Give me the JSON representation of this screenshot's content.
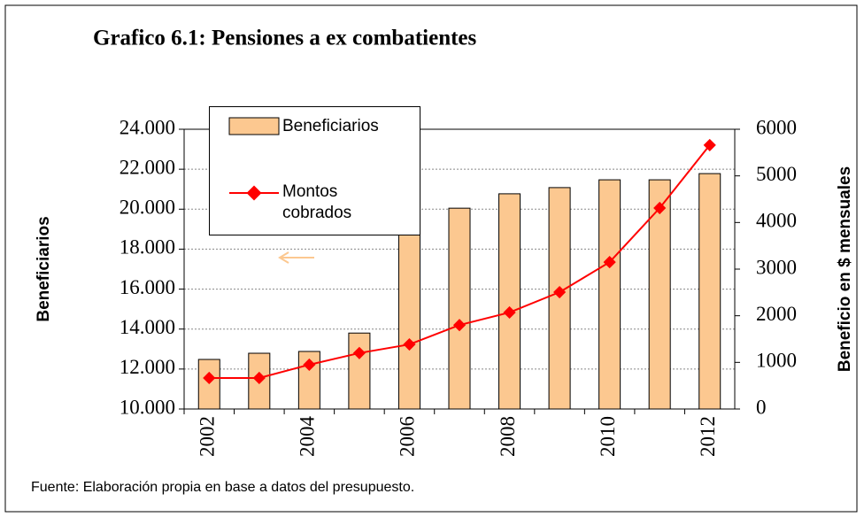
{
  "chart_data": {
    "type": "bar",
    "title": "Grafico 6.1: Pensiones a ex combatientes",
    "y_label": "Beneficiarios",
    "y2_label": "Beneficio en $ mensuales",
    "source": "Fuente: Elaboración propia en base a datos del presupuesto.",
    "categories": [
      "2002",
      null,
      "2004",
      null,
      "2006",
      null,
      "2008",
      null,
      "2010",
      null,
      "2012"
    ],
    "series": [
      {
        "name": "Beneficiarios",
        "type": "bar",
        "color": "#fcc890",
        "values": [
          12480,
          12790,
          12880,
          13800,
          19000,
          20050,
          20770,
          21080,
          21470,
          21470,
          21780
        ]
      },
      {
        "name": "Montos cobrados",
        "type": "line",
        "axis": "y2",
        "color": "#ff0000",
        "values": [
          665,
          665,
          950,
          1200,
          1385,
          1800,
          2070,
          2506,
          3150,
          4310,
          5660
        ]
      }
    ],
    "ylim": [
      10000,
      24000
    ],
    "yticks": [
      {
        "value": 10000,
        "label": "10.000"
      },
      {
        "value": 12000,
        "label": "12.000"
      },
      {
        "value": 14000,
        "label": "14.000"
      },
      {
        "value": 16000,
        "label": "16.000"
      },
      {
        "value": 18000,
        "label": "18.000"
      },
      {
        "value": 20000,
        "label": "20.000"
      },
      {
        "value": 22000,
        "label": "22.000"
      },
      {
        "value": 24000,
        "label": "24.000"
      }
    ],
    "y2lim": [
      0,
      6000
    ],
    "y2ticks": [
      0,
      1000,
      2000,
      3000,
      4000,
      5000,
      6000
    ],
    "grid": true
  }
}
